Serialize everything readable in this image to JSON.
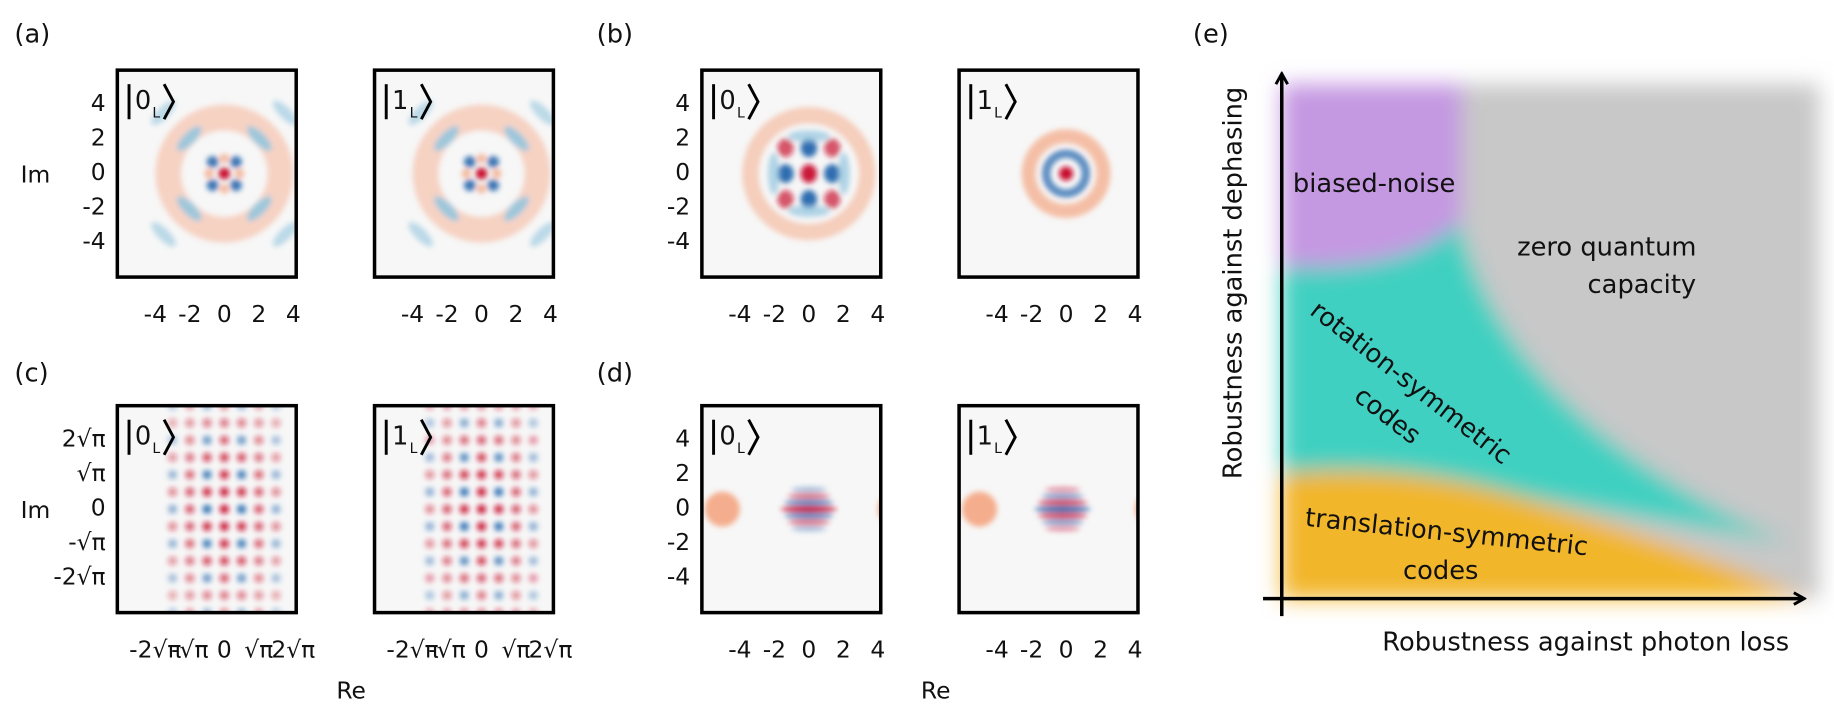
{
  "panels": [
    {
      "label": "(a)",
      "ylabel": "Im",
      "xlabel": null,
      "yticks": [
        "4",
        "2",
        "0",
        "-2",
        "-4"
      ],
      "xticks": [
        "-4",
        "-2",
        "0",
        "2",
        "4"
      ],
      "plots": [
        {
          "ket": "0",
          "sub": "L"
        },
        {
          "ket": "1",
          "sub": "L"
        }
      ]
    },
    {
      "label": "(b)",
      "ylabel": null,
      "xlabel": null,
      "yticks": [
        "4",
        "2",
        "0",
        "-2",
        "-4"
      ],
      "xticks": [
        "-4",
        "-2",
        "0",
        "2",
        "4"
      ],
      "plots": [
        {
          "ket": "0",
          "sub": "L"
        },
        {
          "ket": "1",
          "sub": "L"
        }
      ]
    },
    {
      "label": "(c)",
      "ylabel": "Im",
      "xlabel": "Re",
      "yticks": [
        "2√π",
        "√π",
        "0",
        "-√π",
        "-2√π"
      ],
      "xticks": [
        "-2√π",
        "-√π",
        "0",
        "√π",
        "2√π"
      ],
      "plots": [
        {
          "ket": "0",
          "sub": "L"
        },
        {
          "ket": "1",
          "sub": "L"
        }
      ]
    },
    {
      "label": "(d)",
      "ylabel": null,
      "xlabel": "Re",
      "yticks": [
        "4",
        "2",
        "0",
        "-2",
        "-4"
      ],
      "xticks": [
        "-4",
        "-2",
        "0",
        "2",
        "4"
      ],
      "plots": [
        {
          "ket": "0",
          "sub": "L"
        },
        {
          "ket": "1",
          "sub": "L"
        }
      ]
    }
  ],
  "diagram": {
    "label": "(e)",
    "xlabel": "Robustness against photon loss",
    "ylabel": "Robustness against dephasing",
    "regions": {
      "biased": "biased-noise",
      "zero": [
        "zero quantum",
        "capacity"
      ],
      "rotation": [
        "rotation-symmetric",
        "codes"
      ],
      "translation": [
        "translation-symmetric",
        "codes"
      ]
    }
  }
}
